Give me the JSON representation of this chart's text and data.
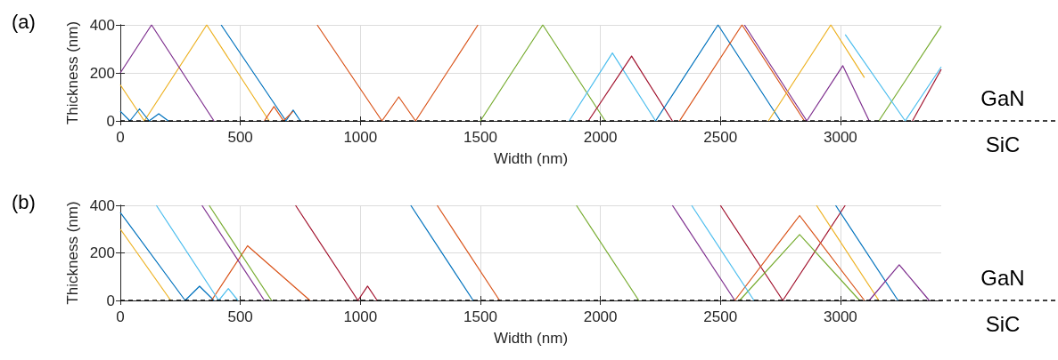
{
  "chart_data": [
    {
      "type": "line",
      "title": "(a)",
      "xlabel": "Width (nm)",
      "ylabel": "Thickness (nm)",
      "xlim": [
        0,
        3420
      ],
      "xticks": [
        0,
        500,
        1000,
        1500,
        2000,
        2500,
        3000
      ],
      "ylim": [
        0,
        400
      ],
      "yticks": [
        0,
        200,
        400
      ],
      "grid": true,
      "annotations": [
        "GaN",
        "SiC"
      ],
      "ref_lines": [
        {
          "axis": "y",
          "value": 0,
          "line_style": "dashed",
          "color": "#000000"
        }
      ],
      "series": [
        {
          "color": "#0072bd",
          "x": [
            420,
            690,
            720,
            750
          ],
          "values": [
            400,
            0,
            45,
            0
          ]
        },
        {
          "color": "#d95319",
          "x": [
            820,
            1090,
            1160,
            1230,
            1490
          ],
          "values": [
            400,
            0,
            100,
            0,
            400
          ]
        },
        {
          "color": "#edb120",
          "x": [
            0,
            100,
            360,
            620
          ],
          "values": [
            150,
            0,
            400,
            0
          ]
        },
        {
          "color": "#7e2f8e",
          "x": [
            0,
            130,
            390
          ],
          "values": [
            200,
            400,
            0
          ]
        },
        {
          "color": "#77ac30",
          "x": [
            1500,
            1760,
            2020
          ],
          "values": [
            0,
            400,
            0
          ]
        },
        {
          "color": "#4dbeee",
          "x": [
            1870,
            2050,
            2230
          ],
          "values": [
            0,
            283,
            0
          ]
        },
        {
          "color": "#a2142f",
          "x": [
            1950,
            2130,
            2300
          ],
          "values": [
            0,
            270,
            0
          ]
        },
        {
          "color": "#0072bd",
          "x": [
            2230,
            2490,
            2750
          ],
          "values": [
            0,
            400,
            0
          ]
        },
        {
          "color": "#d95319",
          "x": [
            2330,
            2590,
            2850
          ],
          "values": [
            0,
            400,
            0
          ]
        },
        {
          "color": "#7e2f8e",
          "x": [
            2600,
            2860,
            3010,
            3120
          ],
          "values": [
            400,
            0,
            230,
            0
          ]
        },
        {
          "color": "#77ac30",
          "x": [
            3160,
            3420
          ],
          "values": [
            0,
            395
          ]
        },
        {
          "color": "#4dbeee",
          "x": [
            3020,
            3270,
            3420
          ],
          "values": [
            360,
            0,
            225
          ]
        },
        {
          "color": "#a2142f",
          "x": [
            3300,
            3420
          ],
          "values": [
            0,
            215
          ]
        },
        {
          "color": "#edb120",
          "x": [
            2700,
            2960,
            3100
          ],
          "values": [
            0,
            400,
            180
          ]
        },
        {
          "color": "#0072bd",
          "x": [
            0,
            40,
            80,
            120,
            160,
            200
          ],
          "values": [
            40,
            0,
            50,
            0,
            30,
            0
          ]
        },
        {
          "color": "#d95319",
          "x": [
            600,
            640,
            680,
            720
          ],
          "values": [
            0,
            60,
            0,
            40
          ]
        }
      ]
    },
    {
      "type": "line",
      "title": "(b)",
      "xlabel": "Width (nm)",
      "ylabel": "Thickness (nm)",
      "xlim": [
        0,
        3420
      ],
      "xticks": [
        0,
        500,
        1000,
        1500,
        2000,
        2500,
        3000
      ],
      "ylim": [
        0,
        400
      ],
      "yticks": [
        0,
        200,
        400
      ],
      "grid": true,
      "annotations": [
        "GaN",
        "SiC"
      ],
      "ref_lines": [
        {
          "axis": "y",
          "value": 0,
          "line_style": "dashed",
          "color": "#000000"
        }
      ],
      "series": [
        {
          "color": "#0072bd",
          "x": [
            0,
            270,
            330,
            390
          ],
          "values": [
            370,
            0,
            60,
            0
          ]
        },
        {
          "color": "#d95319",
          "x": [
            380,
            530,
            790
          ],
          "values": [
            0,
            230,
            0
          ]
        },
        {
          "color": "#edb120",
          "x": [
            0,
            210
          ],
          "values": [
            300,
            0
          ]
        },
        {
          "color": "#7e2f8e",
          "x": [
            340,
            600
          ],
          "values": [
            400,
            0
          ]
        },
        {
          "color": "#77ac30",
          "x": [
            370,
            630
          ],
          "values": [
            400,
            0
          ]
        },
        {
          "color": "#4dbeee",
          "x": [
            150,
            410,
            450,
            490
          ],
          "values": [
            400,
            0,
            50,
            0
          ]
        },
        {
          "color": "#a2142f",
          "x": [
            730,
            990,
            1030,
            1070
          ],
          "values": [
            400,
            0,
            60,
            0
          ]
        },
        {
          "color": "#0072bd",
          "x": [
            1210,
            1470
          ],
          "values": [
            400,
            0
          ]
        },
        {
          "color": "#d95319",
          "x": [
            1320,
            1580
          ],
          "values": [
            400,
            0
          ]
        },
        {
          "color": "#77ac30",
          "x": [
            1900,
            2160
          ],
          "values": [
            400,
            0
          ]
        },
        {
          "color": "#7e2f8e",
          "x": [
            2300,
            2560
          ],
          "values": [
            400,
            0
          ]
        },
        {
          "color": "#a2142f",
          "x": [
            2500,
            2760,
            3020
          ],
          "values": [
            400,
            0,
            400
          ]
        },
        {
          "color": "#d95319",
          "x": [
            2560,
            2830,
            3100
          ],
          "values": [
            0,
            357,
            0
          ]
        },
        {
          "color": "#77ac30",
          "x": [
            2580,
            2830,
            3080
          ],
          "values": [
            0,
            277,
            0
          ]
        },
        {
          "color": "#0072bd",
          "x": [
            2980,
            3240
          ],
          "values": [
            400,
            0
          ]
        },
        {
          "color": "#edb120",
          "x": [
            2900,
            3160
          ],
          "values": [
            400,
            0
          ]
        },
        {
          "color": "#4dbeee",
          "x": [
            2380,
            2640
          ],
          "values": [
            400,
            0
          ]
        },
        {
          "color": "#7e2f8e",
          "x": [
            3120,
            3245,
            3370
          ],
          "values": [
            0,
            150,
            0
          ]
        }
      ]
    }
  ]
}
